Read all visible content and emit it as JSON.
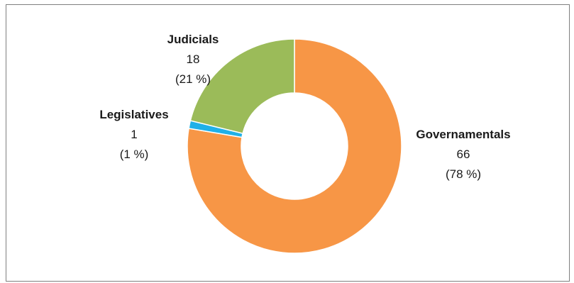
{
  "chart_data": {
    "type": "pie",
    "donut": true,
    "legend": "none",
    "slices": [
      {
        "label": "Governamentals",
        "value": 66,
        "value_label": "66",
        "percent_label": "(78 %)",
        "color": "#f79646"
      },
      {
        "label": "Legislatives",
        "value": 1,
        "value_label": "1",
        "percent_label": "(1 %)",
        "color": "#1fb0e8"
      },
      {
        "label": "Judicials",
        "value": 18,
        "value_label": "18",
        "percent_label": "(21 %)",
        "color": "#9bbb59"
      }
    ]
  }
}
